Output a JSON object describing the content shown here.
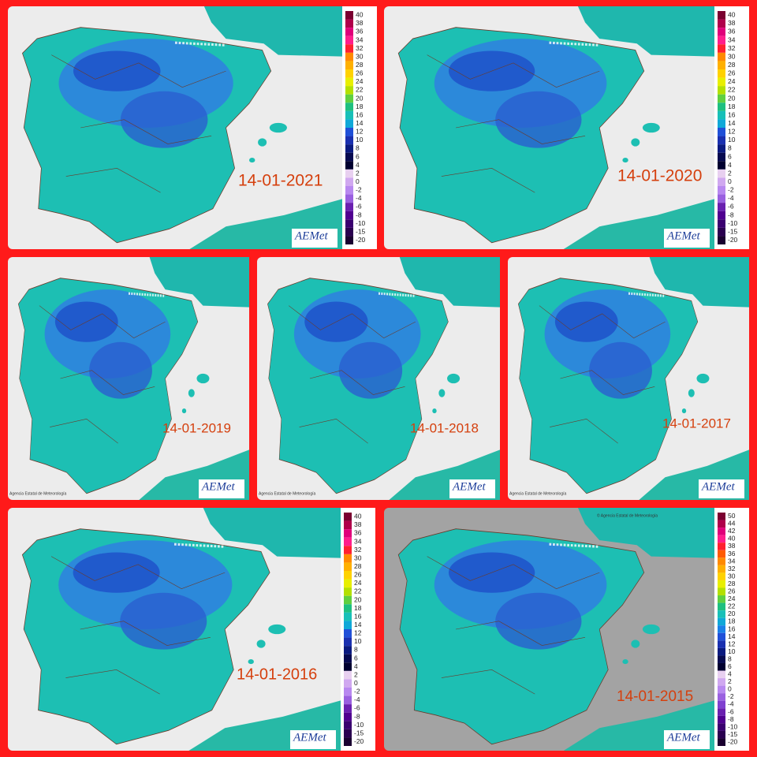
{
  "panels": [
    {
      "date": "14-01-2021",
      "logo": "AEMet",
      "legend": [
        40,
        38,
        36,
        34,
        32,
        30,
        28,
        26,
        24,
        22,
        20,
        18,
        16,
        14,
        12,
        10,
        8,
        6,
        4,
        2,
        0,
        -2,
        -4,
        -6,
        -8,
        -10,
        -15,
        -20
      ]
    },
    {
      "date": "14-01-2020",
      "logo": "AEMet",
      "legend": [
        40,
        38,
        36,
        34,
        32,
        30,
        28,
        26,
        24,
        22,
        20,
        18,
        16,
        14,
        12,
        10,
        8,
        6,
        4,
        2,
        0,
        -2,
        -4,
        -6,
        -8,
        -10,
        -15,
        -20
      ]
    },
    {
      "date": "14-01-2019",
      "logo": "AEMet",
      "source": "Agencia Estatal de Meteorología"
    },
    {
      "date": "14-01-2018",
      "logo": "AEMet",
      "source": "Agencia Estatal de Meteorología"
    },
    {
      "date": "14-01-2017",
      "logo": "AEMet",
      "source": "Agencia Estatal de Meteorología"
    },
    {
      "date": "14-01-2016",
      "logo": "AEMet",
      "legend": [
        40,
        38,
        36,
        34,
        32,
        30,
        28,
        26,
        24,
        22,
        20,
        18,
        16,
        14,
        12,
        10,
        8,
        6,
        4,
        2,
        0,
        -2,
        -4,
        -6,
        -8,
        -10,
        -15,
        -20
      ]
    },
    {
      "date": "14-01-2015",
      "logo": "AEMet",
      "copyright": "© Agencia Estatal de Meteorología",
      "legend": [
        50,
        44,
        42,
        40,
        38,
        36,
        34,
        32,
        30,
        28,
        26,
        24,
        22,
        20,
        18,
        16,
        14,
        12,
        10,
        8,
        6,
        4,
        2,
        0,
        -2,
        -4,
        -6,
        -8,
        -10,
        -15,
        -20
      ]
    }
  ]
}
